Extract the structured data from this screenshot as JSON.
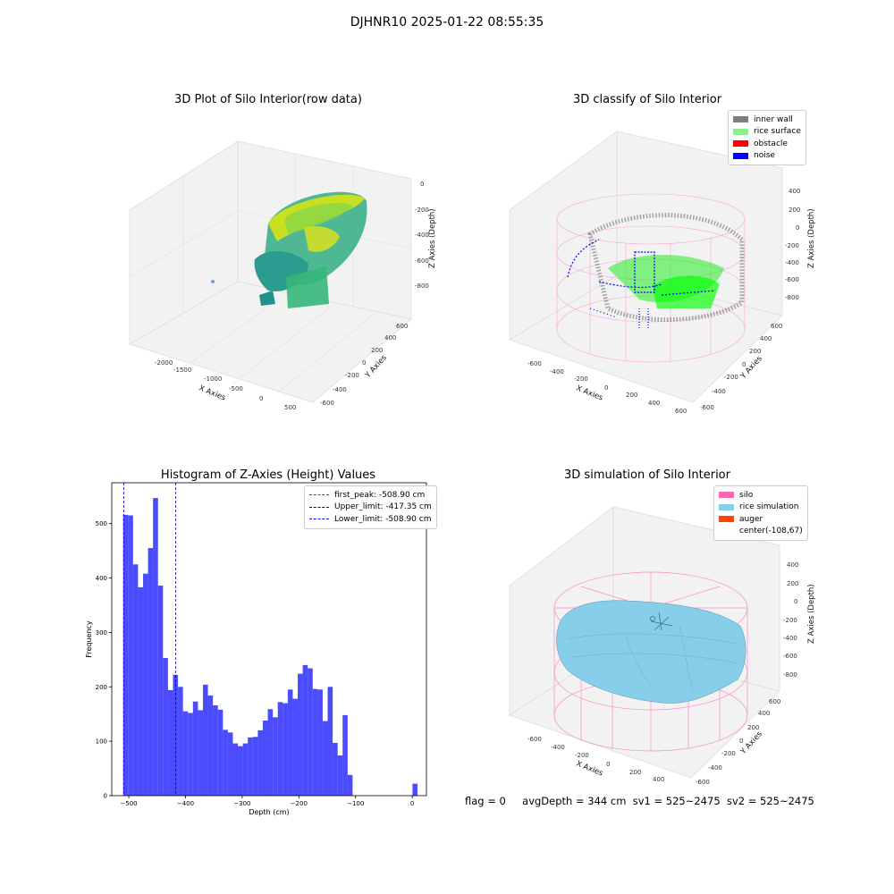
{
  "figure_title": "DJHNR10 2025-01-22 08:55:35",
  "colors": {
    "inner_wall": "#808080",
    "rice_surface": "#90ee90",
    "obstacle": "#ff0000",
    "noise": "#0000ff",
    "silo": "#ff69b4",
    "rice_simulation": "#87ceeb",
    "auger": "#ff4500",
    "hist_bar": "#0000ff",
    "first_peak_line": "#ff0000",
    "limit_line": "#00008b"
  },
  "chart_data": [
    {
      "type": "scatter",
      "title": "3D Plot of Silo Interior(row data)",
      "xlabel": "X Axies",
      "ylabel": "Y Axies",
      "zlabel": "Z Axies (Depth)",
      "x_ticks": [
        "-2000",
        "-1500",
        "-1000",
        "-500",
        "0",
        "500"
      ],
      "y_ticks": [
        "-600",
        "-400",
        "-200",
        "0",
        "200",
        "400",
        "600"
      ],
      "z_ticks": [
        "0",
        "-200",
        "-400",
        "-600",
        "-800"
      ],
      "colormap": "viridis"
    },
    {
      "type": "scatter",
      "title": "3D classify of Silo Interior",
      "xlabel": "X Axies",
      "ylabel": "Y Axies",
      "zlabel": "Z Axies (Depth)",
      "x_ticks": [
        "-600",
        "-400",
        "-200",
        "0",
        "200",
        "400",
        "600"
      ],
      "y_ticks": [
        "-600",
        "-400",
        "-200",
        "0",
        "200",
        "400",
        "600"
      ],
      "z_ticks": [
        "400",
        "200",
        "0",
        "-200",
        "-400",
        "-600",
        "-800"
      ],
      "legend": [
        "inner wall",
        "rice surface",
        "obstacle",
        "noise"
      ],
      "legend_position": "top-right"
    },
    {
      "type": "bar",
      "title": "Histogram of Z-Axies (Height) Values",
      "xlabel": "Depth (cm)",
      "ylabel": "Frequency",
      "xlim": [
        -530,
        25
      ],
      "ylim": [
        0,
        575
      ],
      "x_ticks": [
        -500,
        -400,
        -300,
        -200,
        -100,
        0
      ],
      "y_ticks": [
        0,
        100,
        200,
        300,
        400,
        500
      ],
      "bin_width": 8.8,
      "bin_starts": [
        -510,
        -501.2,
        -492.4,
        -483.6,
        -474.8,
        -466,
        -457.2,
        -448.4,
        -439.6,
        -430.8,
        -422,
        -413.2,
        -404.4,
        -395.6,
        -386.8,
        -378,
        -369.2,
        -360.4,
        -351.6,
        -342.8,
        -334,
        -325.2,
        -316.4,
        -307.6,
        -298.8,
        -290,
        -281.2,
        -272.4,
        -263.6,
        -254.8,
        -246,
        -237.2,
        -228.4,
        -219.6,
        -210.8,
        -202,
        -193.2,
        -184.4,
        -175.6,
        -166.8,
        -158,
        -149.2,
        -140.4,
        -131.6,
        -122.8,
        -114,
        -105.2,
        -96.4,
        -87.6,
        -78.8,
        -70,
        -61.2,
        -52.4,
        -43.6,
        -34.8,
        -26,
        -17.2,
        -8.4,
        0.4
      ],
      "values": [
        516,
        515,
        425,
        383,
        408,
        455,
        547,
        386,
        253,
        194,
        222,
        200,
        155,
        152,
        173,
        157,
        204,
        184,
        166,
        158,
        121,
        116,
        96,
        91,
        96,
        107,
        108,
        120,
        138,
        159,
        144,
        172,
        170,
        195,
        178,
        224,
        240,
        234,
        196,
        195,
        137,
        200,
        97,
        74,
        148,
        38,
        0,
        0,
        0,
        0,
        0,
        0,
        0,
        0,
        0,
        0,
        0,
        0,
        22
      ],
      "vlines": [
        {
          "label": "first_peak: -508.90 cm",
          "x": -508.9
        },
        {
          "label": "Upper_limit: -417.35 cm",
          "x": -417.35
        },
        {
          "label": "Lower_limit: -508.90 cm",
          "x": -508.9
        }
      ],
      "legend_position": "top-right"
    },
    {
      "type": "area",
      "title": "3D simulation of Silo Interior",
      "xlabel": "X Axies",
      "ylabel": "Y Axies",
      "zlabel": "Z Axies (Depth)",
      "x_ticks": [
        "-600",
        "-400",
        "-200",
        "0",
        "200",
        "400"
      ],
      "y_ticks": [
        "-600",
        "-400",
        "-200",
        "0",
        "200",
        "400",
        "600"
      ],
      "z_ticks": [
        "400",
        "200",
        "0",
        "-200",
        "-400",
        "-600",
        "-800"
      ],
      "legend": [
        "silo",
        "rice simulation",
        "auger",
        "center(-108,67)"
      ],
      "legend_position": "top-right"
    }
  ],
  "status": {
    "flag": "flag = 0",
    "avg_depth": "avgDepth = 344 cm",
    "sv1": "sv1 = 525~2475",
    "sv2": "sv2 = 525~2475"
  }
}
